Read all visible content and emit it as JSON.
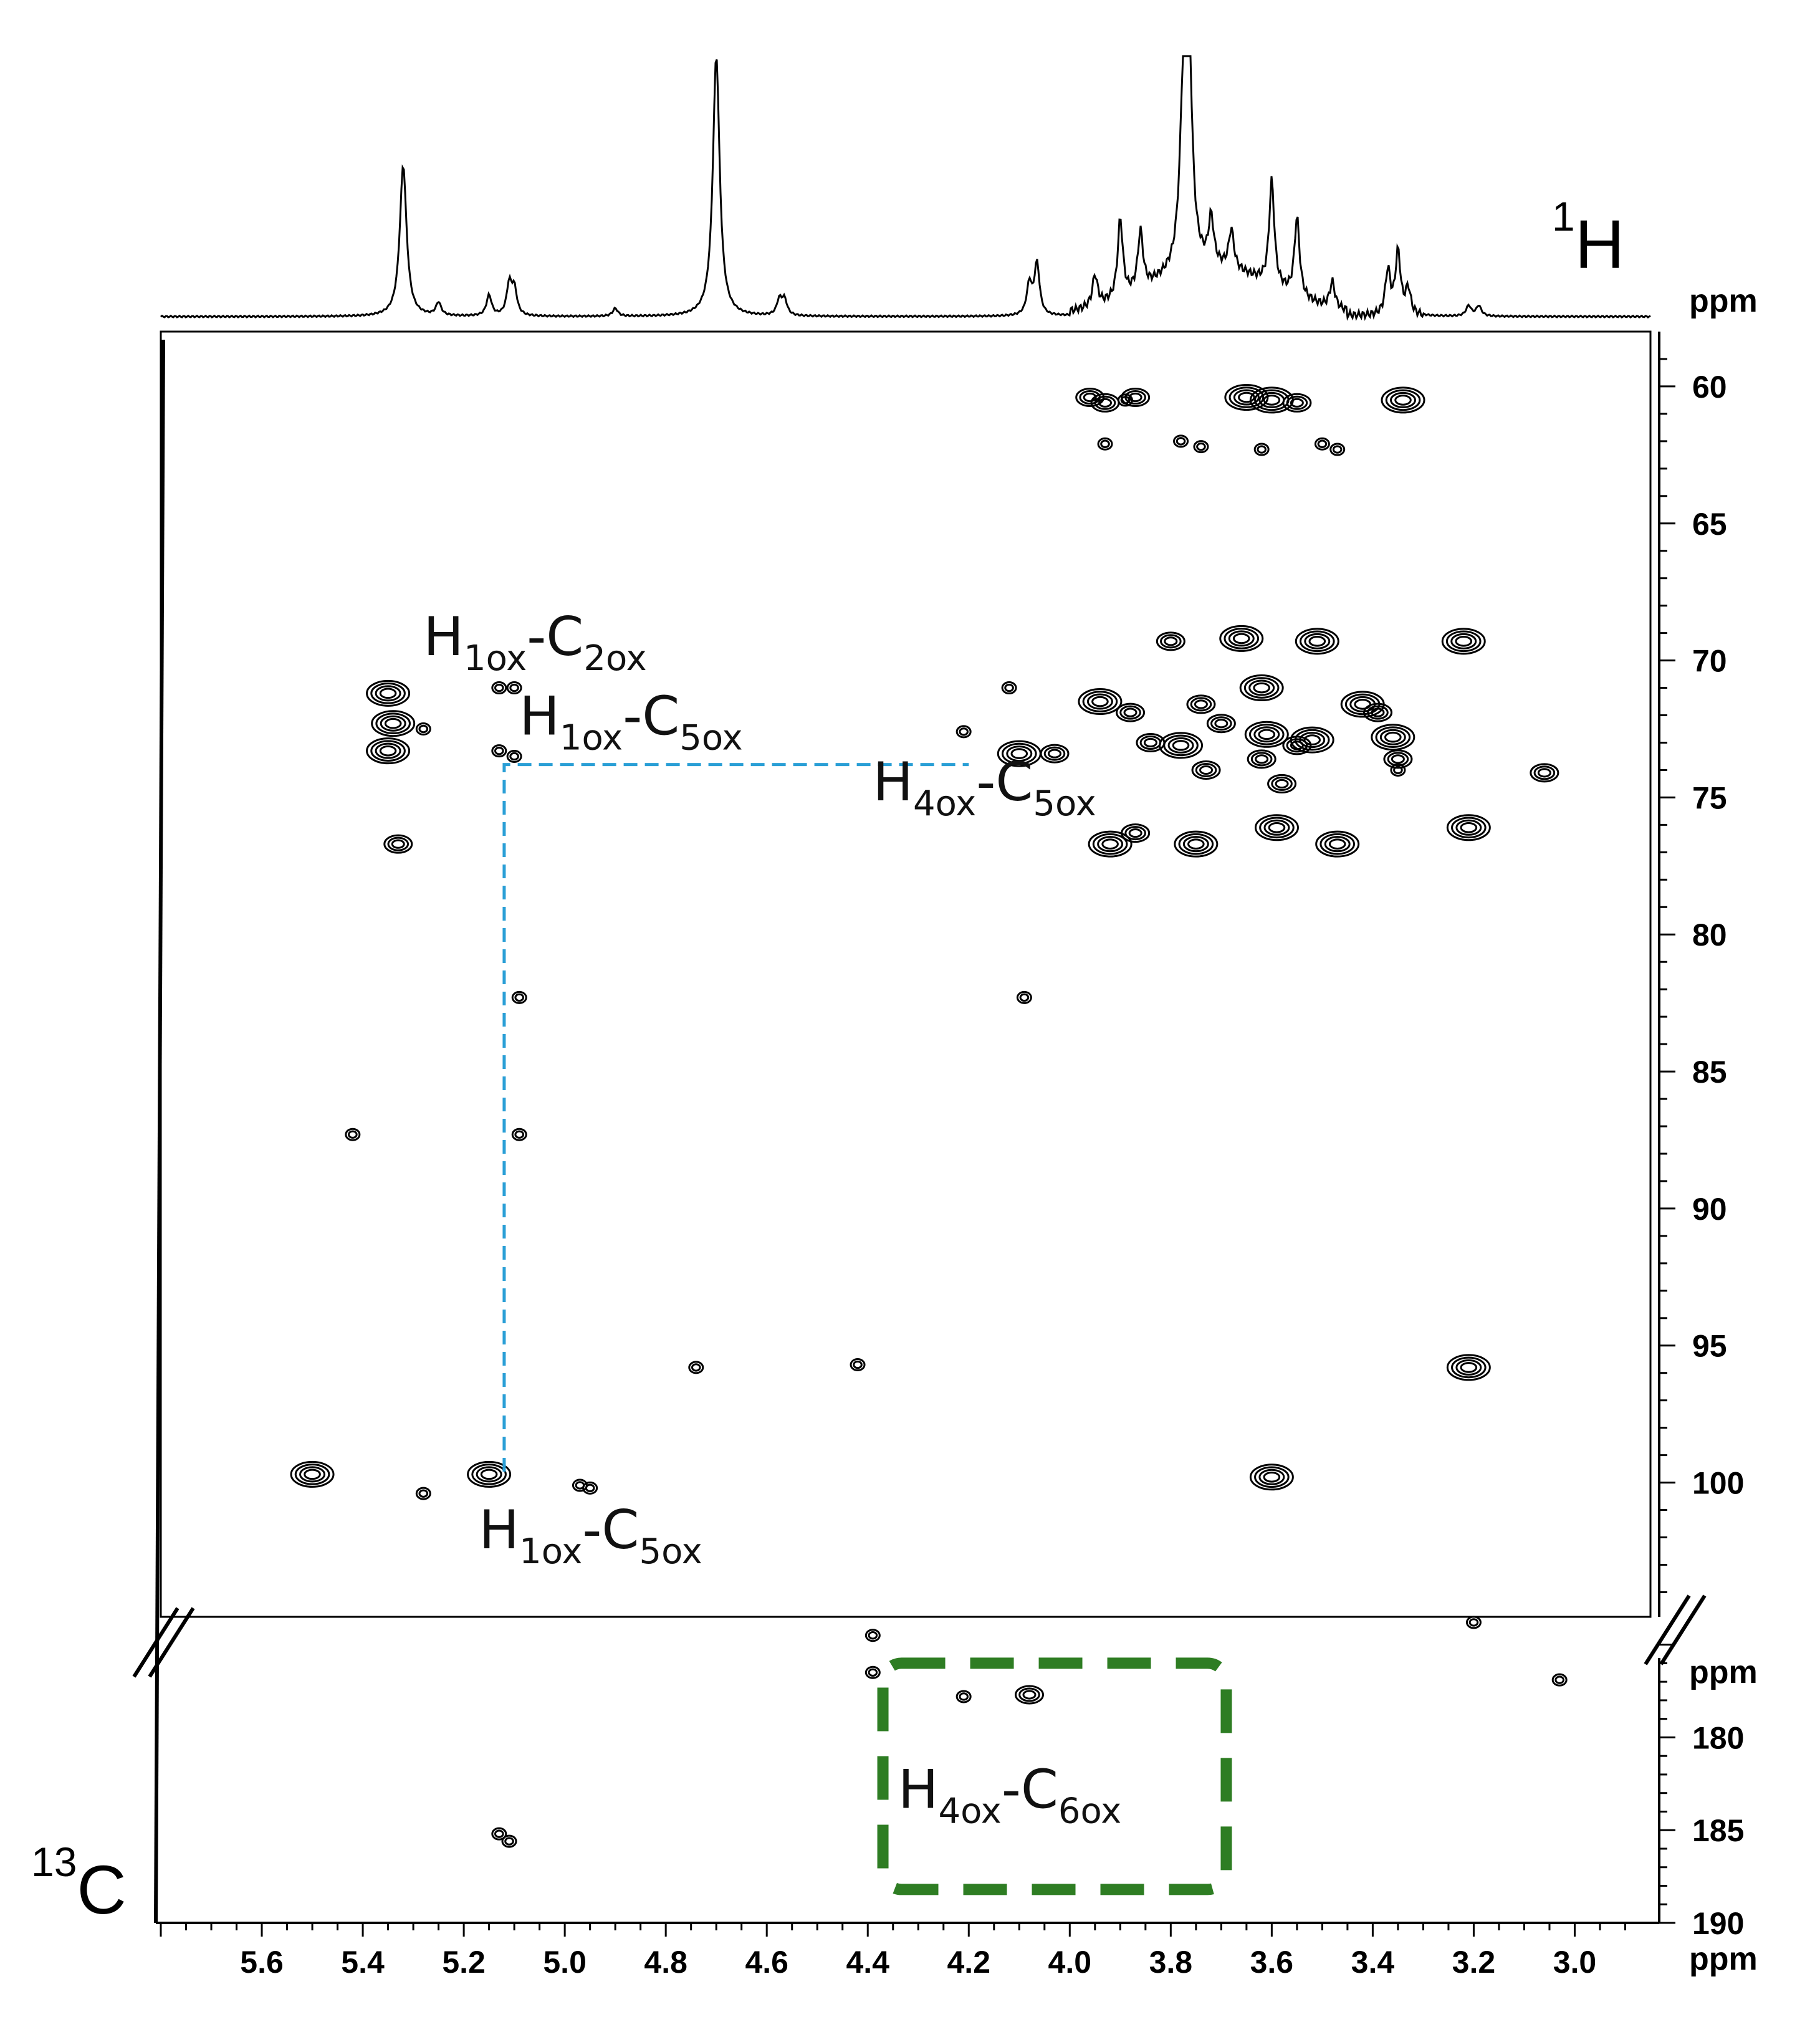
{
  "chart_data": {
    "type": "scatter",
    "experiment": "2D NMR correlation spectrum",
    "x_axis": {
      "nucleus": "1H",
      "nucleus_mass": "1",
      "nucleus_symbol": "H",
      "unit": "ppm",
      "range": [
        5.8,
        2.85
      ],
      "reversed": true,
      "ticks": [
        "5.6",
        "5.4",
        "5.2",
        "5.0",
        "4.8",
        "4.6",
        "4.4",
        "4.2",
        "4.0",
        "3.8",
        "3.6",
        "3.4",
        "3.2",
        "3.0"
      ]
    },
    "y_axis": {
      "nucleus": "13C",
      "nucleus_mass": "13",
      "nucleus_symbol": "C",
      "unit": "ppm",
      "broken": true,
      "upper_range": [
        58,
        104.9
      ],
      "lower_range": [
        173.5,
        190
      ],
      "upper_ticks": [
        "60",
        "65",
        "70",
        "75",
        "80",
        "85",
        "90",
        "95",
        "100"
      ],
      "lower_ticks": [
        "180",
        "185",
        "190"
      ],
      "upper_unit_label": "ppm",
      "lower_unit_label": "ppm"
    },
    "proton_spectrum_peaks": [
      {
        "x": 5.32,
        "intensity": 0.58
      },
      {
        "x": 5.25,
        "intensity": 0.05
      },
      {
        "x": 5.15,
        "intensity": 0.08
      },
      {
        "x": 5.11,
        "intensity": 0.12
      },
      {
        "x": 5.1,
        "intensity": 0.1
      },
      {
        "x": 4.9,
        "intensity": 0.03
      },
      {
        "x": 4.7,
        "intensity": 1.0
      },
      {
        "x": 4.575,
        "intensity": 0.06
      },
      {
        "x": 4.565,
        "intensity": 0.06
      },
      {
        "x": 4.08,
        "intensity": 0.12
      },
      {
        "x": 4.065,
        "intensity": 0.2
      },
      {
        "x": 3.95,
        "intensity": 0.12
      },
      {
        "x": 3.9,
        "intensity": 0.3
      },
      {
        "x": 3.86,
        "intensity": 0.22
      },
      {
        "x": 3.775,
        "intensity": 0.55
      },
      {
        "x": 3.765,
        "intensity": 0.88
      },
      {
        "x": 3.72,
        "intensity": 0.18
      },
      {
        "x": 3.68,
        "intensity": 0.15
      },
      {
        "x": 3.6,
        "intensity": 0.4
      },
      {
        "x": 3.55,
        "intensity": 0.3
      },
      {
        "x": 3.48,
        "intensity": 0.1
      },
      {
        "x": 3.37,
        "intensity": 0.17
      },
      {
        "x": 3.35,
        "intensity": 0.24
      },
      {
        "x": 3.33,
        "intensity": 0.1
      },
      {
        "x": 3.21,
        "intensity": 0.04
      },
      {
        "x": 3.19,
        "intensity": 0.04
      }
    ],
    "cross_peaks": [
      {
        "x": 3.96,
        "y": 60.4,
        "size": 2
      },
      {
        "x": 3.93,
        "y": 60.6,
        "size": 2
      },
      {
        "x": 3.89,
        "y": 60.5,
        "size": 1
      },
      {
        "x": 3.87,
        "y": 60.4,
        "size": 2
      },
      {
        "x": 3.93,
        "y": 62.1,
        "size": 1
      },
      {
        "x": 3.78,
        "y": 62.0,
        "size": 1
      },
      {
        "x": 3.74,
        "y": 62.2,
        "size": 1
      },
      {
        "x": 3.65,
        "y": 60.4,
        "size": 3
      },
      {
        "x": 3.6,
        "y": 60.5,
        "size": 3
      },
      {
        "x": 3.55,
        "y": 60.6,
        "size": 2
      },
      {
        "x": 3.62,
        "y": 62.3,
        "size": 1
      },
      {
        "x": 3.5,
        "y": 62.1,
        "size": 1
      },
      {
        "x": 3.47,
        "y": 62.3,
        "size": 1
      },
      {
        "x": 3.34,
        "y": 60.5,
        "size": 3
      },
      {
        "x": 5.35,
        "y": 71.2,
        "size": 3
      },
      {
        "x": 5.34,
        "y": 72.3,
        "size": 3
      },
      {
        "x": 5.35,
        "y": 73.3,
        "size": 3
      },
      {
        "x": 5.28,
        "y": 72.5,
        "size": 1
      },
      {
        "x": 5.13,
        "y": 71.0,
        "size": 1
      },
      {
        "x": 5.1,
        "y": 71.0,
        "size": 1
      },
      {
        "x": 5.13,
        "y": 73.3,
        "size": 1
      },
      {
        "x": 5.1,
        "y": 73.5,
        "size": 1
      },
      {
        "x": 5.33,
        "y": 76.7,
        "size": 2
      },
      {
        "x": 4.21,
        "y": 72.6,
        "size": 1
      },
      {
        "x": 4.12,
        "y": 71.0,
        "size": 1
      },
      {
        "x": 4.1,
        "y": 73.4,
        "size": 3
      },
      {
        "x": 4.03,
        "y": 73.4,
        "size": 2
      },
      {
        "x": 3.94,
        "y": 71.5,
        "size": 3
      },
      {
        "x": 3.88,
        "y": 71.9,
        "size": 2
      },
      {
        "x": 3.84,
        "y": 73.0,
        "size": 2
      },
      {
        "x": 3.78,
        "y": 73.1,
        "size": 3
      },
      {
        "x": 3.74,
        "y": 71.6,
        "size": 2
      },
      {
        "x": 3.73,
        "y": 74.0,
        "size": 2
      },
      {
        "x": 3.7,
        "y": 72.3,
        "size": 2
      },
      {
        "x": 3.66,
        "y": 69.2,
        "size": 3
      },
      {
        "x": 3.62,
        "y": 71.0,
        "size": 3
      },
      {
        "x": 3.61,
        "y": 72.7,
        "size": 3
      },
      {
        "x": 3.62,
        "y": 73.6,
        "size": 2
      },
      {
        "x": 3.58,
        "y": 74.5,
        "size": 2
      },
      {
        "x": 3.55,
        "y": 73.1,
        "size": 2
      },
      {
        "x": 3.52,
        "y": 72.9,
        "size": 3
      },
      {
        "x": 3.51,
        "y": 69.3,
        "size": 3
      },
      {
        "x": 3.8,
        "y": 69.3,
        "size": 2
      },
      {
        "x": 3.42,
        "y": 71.6,
        "size": 3
      },
      {
        "x": 3.39,
        "y": 71.9,
        "size": 2
      },
      {
        "x": 3.36,
        "y": 72.8,
        "size": 3
      },
      {
        "x": 3.35,
        "y": 73.6,
        "size": 2
      },
      {
        "x": 3.35,
        "y": 74.0,
        "size": 1
      },
      {
        "x": 3.22,
        "y": 69.3,
        "size": 3
      },
      {
        "x": 3.06,
        "y": 74.1,
        "size": 2
      },
      {
        "x": 3.92,
        "y": 76.7,
        "size": 3
      },
      {
        "x": 3.87,
        "y": 76.3,
        "size": 2
      },
      {
        "x": 3.75,
        "y": 76.7,
        "size": 3
      },
      {
        "x": 3.59,
        "y": 76.1,
        "size": 3
      },
      {
        "x": 3.47,
        "y": 76.7,
        "size": 3
      },
      {
        "x": 3.21,
        "y": 76.1,
        "size": 3
      },
      {
        "x": 5.09,
        "y": 82.3,
        "size": 1
      },
      {
        "x": 4.09,
        "y": 82.3,
        "size": 1
      },
      {
        "x": 5.42,
        "y": 87.3,
        "size": 1
      },
      {
        "x": 5.09,
        "y": 87.3,
        "size": 1
      },
      {
        "x": 4.74,
        "y": 95.8,
        "size": 1
      },
      {
        "x": 4.42,
        "y": 95.7,
        "size": 1
      },
      {
        "x": 3.21,
        "y": 95.8,
        "size": 3
      },
      {
        "x": 5.5,
        "y": 99.7,
        "size": 3
      },
      {
        "x": 5.15,
        "y": 99.7,
        "size": 3
      },
      {
        "x": 3.6,
        "y": 99.8,
        "size": 3
      },
      {
        "x": 5.28,
        "y": 100.4,
        "size": 1
      },
      {
        "x": 4.97,
        "y": 100.1,
        "size": 1
      },
      {
        "x": 4.95,
        "y": 100.2,
        "size": 1
      },
      {
        "x": 4.39,
        "y": 174.5,
        "size": 1
      },
      {
        "x": 4.39,
        "y": 176.5,
        "size": 1
      },
      {
        "x": 4.21,
        "y": 177.8,
        "size": 1
      },
      {
        "x": 4.08,
        "y": 177.7,
        "size": 2
      },
      {
        "x": 3.2,
        "y": 173.8,
        "size": 1
      },
      {
        "x": 3.03,
        "y": 176.9,
        "size": 1
      },
      {
        "x": 5.13,
        "y": 185.2,
        "size": 1
      },
      {
        "x": 5.11,
        "y": 185.6,
        "size": 1
      }
    ],
    "annotations": [
      {
        "main": "H",
        "sub1": "1ox",
        "mid": "-C",
        "sub2": "2ox",
        "x": 5.28,
        "y": 69.8,
        "color": "#111111"
      },
      {
        "main": "H",
        "sub1": "1ox",
        "mid": "-C",
        "sub2": "5ox",
        "x": 5.09,
        "y": 72.7,
        "color": "#111111"
      },
      {
        "main": "H",
        "sub1": "4ox",
        "mid": "-C",
        "sub2": "5ox",
        "x": 4.39,
        "y": 75.1,
        "color": "#111111"
      },
      {
        "main": "H",
        "sub1": "1ox",
        "mid": "-C",
        "sub2": "5ox",
        "x": 5.17,
        "y": 102.4,
        "color": "#111111"
      },
      {
        "main": "H",
        "sub1": "4ox",
        "mid": "-C",
        "sub2": "6ox",
        "x": 4.34,
        "y": 183.8,
        "color": "#111111"
      }
    ],
    "connectors": {
      "color": "#2a9fd6",
      "path": [
        [
          5.12,
          99.6
        ],
        [
          5.12,
          73.8
        ],
        [
          4.2,
          73.8
        ]
      ]
    },
    "highlight_box": {
      "color": "#2e7d23",
      "x_range": [
        4.37,
        3.69
      ],
      "y_range": [
        176.0,
        188.2
      ]
    },
    "grid": false,
    "legend": null
  }
}
